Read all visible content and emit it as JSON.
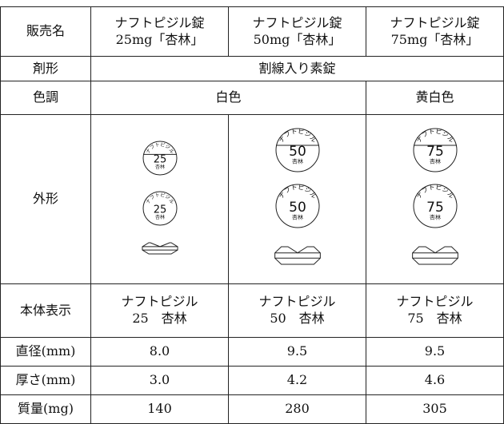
{
  "table": {
    "header": {
      "label": "販売名",
      "products": [
        [
          "ナフトピジル錠",
          "25mg「杏林」"
        ],
        [
          "ナフトピジル錠",
          "50mg「杏林」"
        ],
        [
          "ナフトピジル錠",
          "75mg「杏林」"
        ]
      ]
    },
    "rows": [
      {
        "label": "剤形",
        "cells": [
          "割線入り素錠"
        ]
      },
      {
        "label": "色調",
        "cells": [
          "白色",
          "黄白色"
        ]
      },
      {
        "label": "外形",
        "pills": [
          {
            "arc": "ナフトピジル",
            "number": "25",
            "maker": "杏林"
          },
          {
            "arc": "ナフトピジル",
            "number": "50",
            "maker": "杏林"
          },
          {
            "arc": "ナフトピジル",
            "number": "75",
            "maker": "杏林"
          }
        ]
      },
      {
        "label": "本体表示",
        "cells": [
          [
            "ナフトピジル",
            "25　杏林"
          ],
          [
            "ナフトピジル",
            "50　杏林"
          ],
          [
            "ナフトピジル",
            "75　杏林"
          ]
        ]
      },
      {
        "label": "直径(mm)",
        "cells": [
          "8.0",
          "9.5",
          "9.5"
        ]
      },
      {
        "label": "厚さ(mm)",
        "cells": [
          "3.0",
          "4.2",
          "4.6"
        ]
      },
      {
        "label": "質量(mg)",
        "cells": [
          "140",
          "280",
          "305"
        ]
      }
    ]
  }
}
